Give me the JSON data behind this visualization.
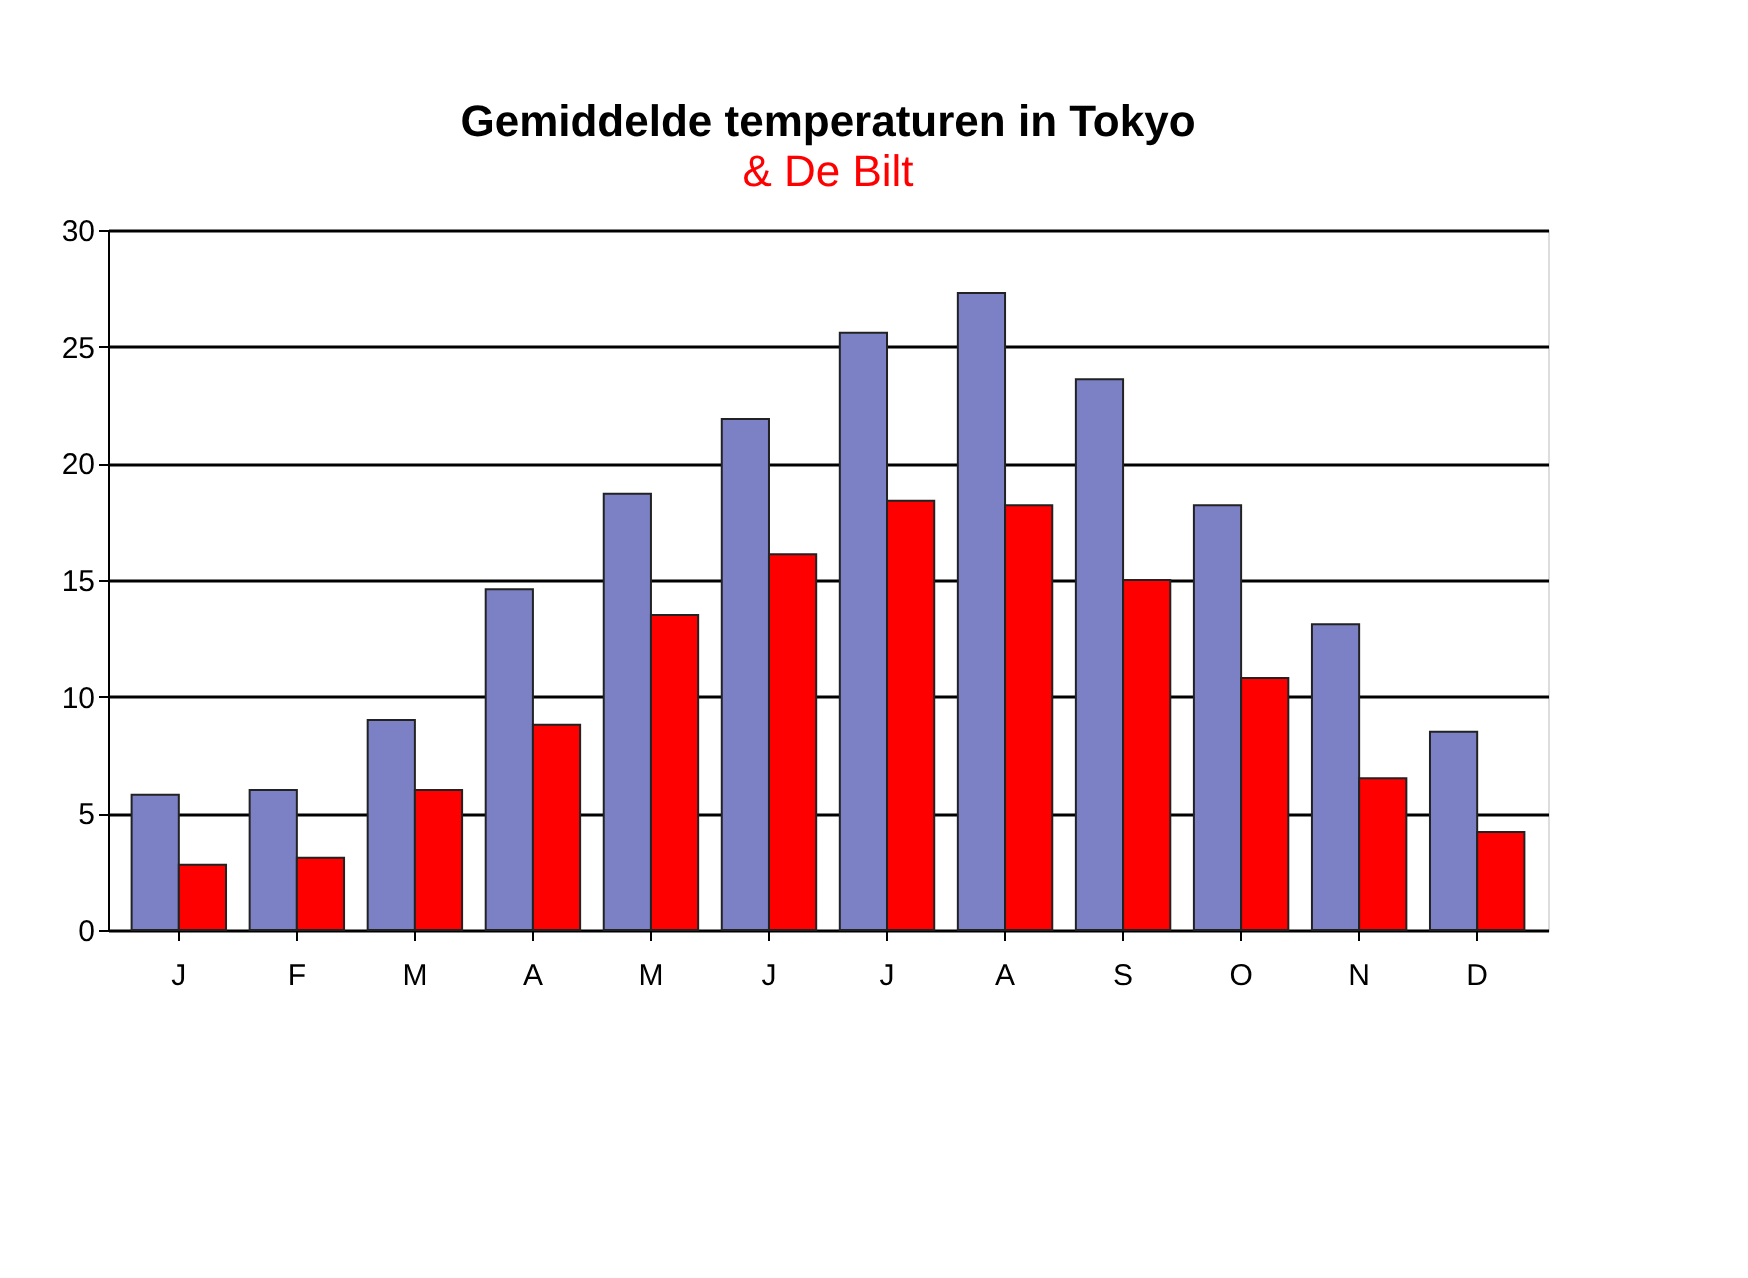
{
  "chart_data": {
    "type": "bar",
    "title": "Gemiddelde temperaturen in Tokyo",
    "subtitle": "& De Bilt",
    "categories": [
      "J",
      "F",
      "M",
      "A",
      "M",
      "J",
      "J",
      "A",
      "S",
      "O",
      "N",
      "D"
    ],
    "series": [
      {
        "color": "#7c80c4",
        "values": [
          5.8,
          6.0,
          9.0,
          14.6,
          18.7,
          21.9,
          25.6,
          27.3,
          23.6,
          18.2,
          13.1,
          8.5
        ]
      },
      {
        "color": "#ff0000",
        "values": [
          2.8,
          3.1,
          6.0,
          8.8,
          13.5,
          16.1,
          18.4,
          18.2,
          15.0,
          10.8,
          6.5,
          4.2
        ]
      }
    ],
    "ylim": [
      0,
      30
    ],
    "yticks": [
      0,
      5,
      10,
      15,
      20,
      25,
      30
    ],
    "grid": "y",
    "legend": false
  }
}
